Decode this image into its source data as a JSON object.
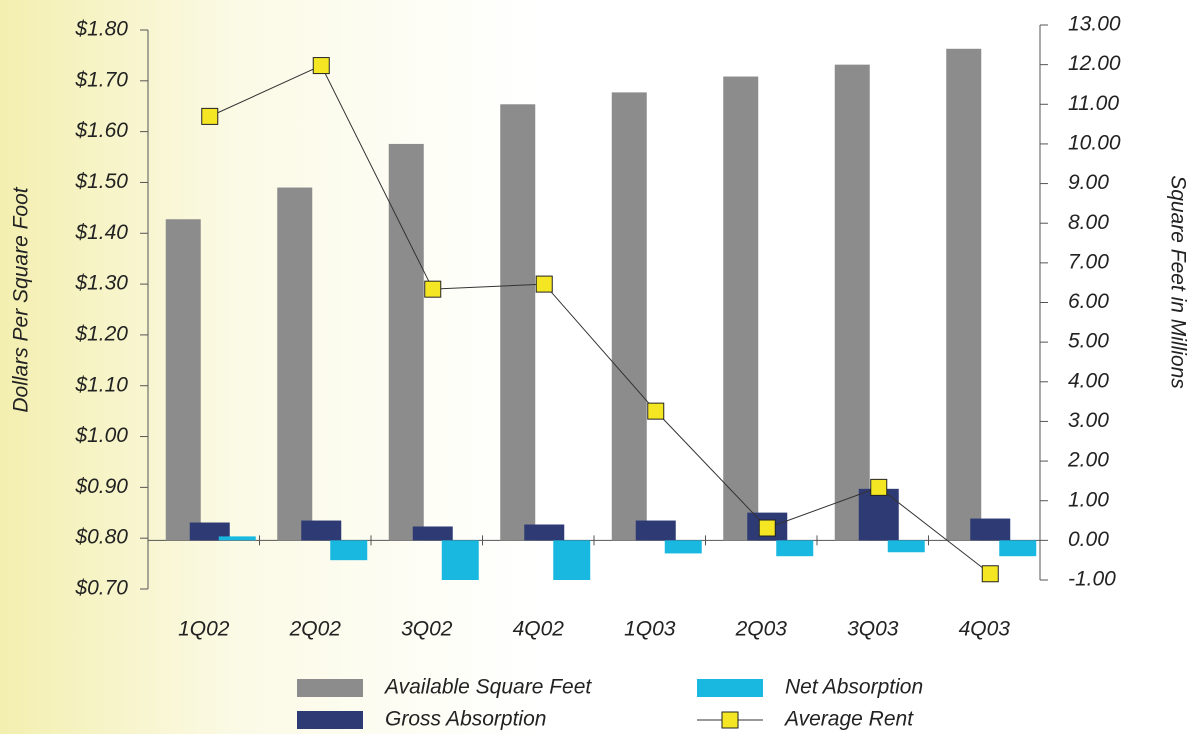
{
  "chart_data": {
    "type": "bar",
    "ylabel": "Dollars Per Square Foot",
    "y2label": "Square Feet in Millions",
    "categories": [
      "1Q02",
      "2Q02",
      "3Q02",
      "4Q02",
      "1Q03",
      "2Q03",
      "3Q03",
      "4Q03"
    ],
    "series": [
      {
        "name": "Available Square Feet",
        "color": "#8c8c8c",
        "type": "bar",
        "axis": "y2",
        "values": [
          8.1,
          8.9,
          10.0,
          11.0,
          11.3,
          11.7,
          12.0,
          12.4
        ]
      },
      {
        "name": "Gross Absorption",
        "color": "#2e3a74",
        "type": "bar",
        "axis": "y2",
        "values": [
          0.45,
          0.5,
          0.35,
          0.4,
          0.5,
          0.7,
          1.3,
          0.55
        ]
      },
      {
        "name": "Net Absorption",
        "color": "#19b8e0",
        "type": "bar",
        "axis": "y2",
        "values": [
          0.1,
          -0.5,
          -1.0,
          -1.0,
          -0.33,
          -0.4,
          -0.3,
          -0.4
        ]
      },
      {
        "name": "Average Rent",
        "color": "#f5e623",
        "type": "line",
        "axis": "y",
        "values": [
          1.63,
          1.73,
          1.29,
          1.3,
          1.05,
          0.82,
          0.9,
          0.73
        ]
      }
    ],
    "ylim": [
      0.7,
      1.8
    ],
    "yticks": [
      {
        "value": 0.7,
        "label": "$0.70"
      },
      {
        "value": 0.8,
        "label": "$0.80"
      },
      {
        "value": 0.9,
        "label": "$0.90"
      },
      {
        "value": 1.0,
        "label": "$1.00"
      },
      {
        "value": 1.1,
        "label": "$1.10"
      },
      {
        "value": 1.2,
        "label": "$1.20"
      },
      {
        "value": 1.3,
        "label": "$1.30"
      },
      {
        "value": 1.4,
        "label": "$1.40"
      },
      {
        "value": 1.5,
        "label": "$1.50"
      },
      {
        "value": 1.6,
        "label": "$1.60"
      },
      {
        "value": 1.7,
        "label": "$1.70"
      },
      {
        "value": 1.8,
        "label": "$1.80"
      }
    ],
    "y2lim": [
      -1,
      13
    ],
    "y2ticks": [
      {
        "value": -1,
        "label": "-1.00"
      },
      {
        "value": 0,
        "label": "0.00"
      },
      {
        "value": 1,
        "label": "1.00"
      },
      {
        "value": 2,
        "label": "2.00"
      },
      {
        "value": 3,
        "label": "3.00"
      },
      {
        "value": 4,
        "label": "4.00"
      },
      {
        "value": 5,
        "label": "5.00"
      },
      {
        "value": 6,
        "label": "6.00"
      },
      {
        "value": 7,
        "label": "7.00"
      },
      {
        "value": 8,
        "label": "8.00"
      },
      {
        "value": 9,
        "label": "9.00"
      },
      {
        "value": 10,
        "label": "10.00"
      },
      {
        "value": 11,
        "label": "11.00"
      },
      {
        "value": 12,
        "label": "12.00"
      },
      {
        "value": 13,
        "label": "13.00"
      }
    ],
    "grid": false
  }
}
